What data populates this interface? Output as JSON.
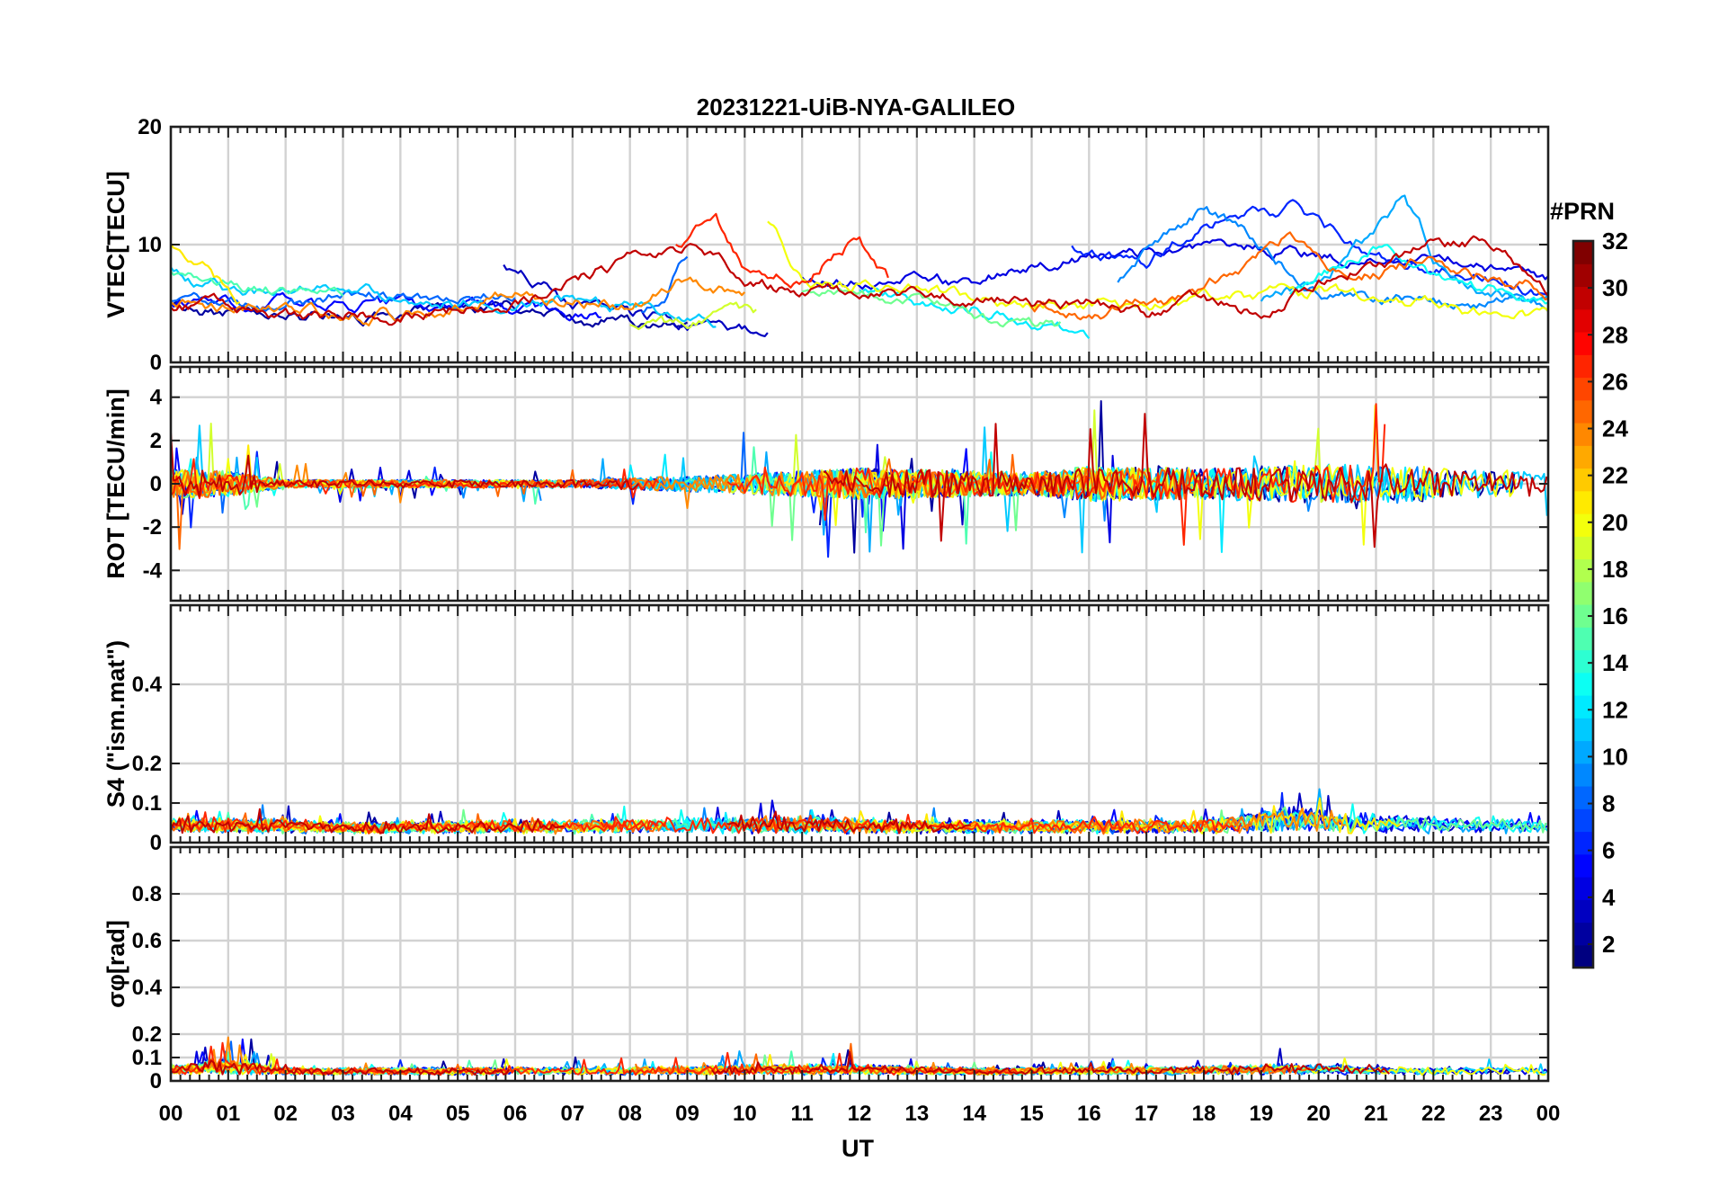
{
  "chart_data": {
    "type": "line",
    "title": "20231221-UiB-NYA-GALILEO",
    "xlabel": "UT",
    "x_ticks": [
      "00",
      "01",
      "02",
      "03",
      "04",
      "05",
      "06",
      "07",
      "08",
      "09",
      "10",
      "11",
      "12",
      "13",
      "14",
      "15",
      "16",
      "17",
      "18",
      "19",
      "20",
      "21",
      "22",
      "23",
      "00"
    ],
    "xlim": [
      0,
      24
    ],
    "grid": true,
    "colorbar": {
      "label": "#PRN",
      "range": [
        1,
        32
      ],
      "ticks": [
        "2",
        "4",
        "6",
        "8",
        "10",
        "12",
        "14",
        "16",
        "18",
        "20",
        "22",
        "24",
        "26",
        "28",
        "30",
        "32"
      ],
      "colormap": "jet"
    },
    "panels": [
      {
        "id": "vtec",
        "ylabel": "VTEC[TECU]",
        "ylim": [
          0,
          20
        ],
        "y_ticks": [
          "0",
          "10",
          "20"
        ],
        "baseline": 5,
        "noise": 0.7,
        "spike": 0.0,
        "series": [
          {
            "prn": 2,
            "start": 0,
            "end": 9,
            "level": [
              [
                0,
                4.8
              ],
              [
                2,
                3.5
              ],
              [
                4,
                4.0
              ],
              [
                6,
                5.0
              ],
              [
                8,
                3.2
              ],
              [
                9,
                3.5
              ]
            ]
          },
          {
            "prn": 3,
            "start": 5.8,
            "end": 10.4,
            "level": [
              [
                5.8,
                8
              ],
              [
                7,
                5
              ],
              [
                8,
                4
              ],
              [
                9,
                3.5
              ],
              [
                10,
                2.5
              ]
            ]
          },
          {
            "prn": 4,
            "start": 11,
            "end": 24,
            "level": [
              [
                11,
                7
              ],
              [
                14,
                7
              ],
              [
                16,
                9
              ],
              [
                18,
                10
              ],
              [
                20,
                9
              ],
              [
                22,
                9
              ],
              [
                24,
                7
              ]
            ]
          },
          {
            "prn": 5,
            "start": 0,
            "end": 7.5,
            "level": [
              [
                0,
                5
              ],
              [
                3,
                5
              ],
              [
                5,
                4.5
              ],
              [
                7,
                4
              ]
            ]
          },
          {
            "prn": 6,
            "start": 15.7,
            "end": 24,
            "level": [
              [
                15.7,
                10
              ],
              [
                17,
                8
              ],
              [
                18,
                12
              ],
              [
                19.5,
                13
              ],
              [
                21,
                9
              ],
              [
                22,
                8
              ],
              [
                24,
                6
              ]
            ]
          },
          {
            "prn": 8,
            "start": 0,
            "end": 6,
            "level": [
              [
                0,
                5
              ],
              [
                2,
                4.5
              ],
              [
                3,
                6
              ],
              [
                5,
                5
              ],
              [
                6,
                5.5
              ]
            ]
          },
          {
            "prn": 8,
            "start": 8.2,
            "end": 9.0,
            "level": [
              [
                8.2,
                4
              ],
              [
                8.6,
                6
              ],
              [
                9,
                9.5
              ]
            ]
          },
          {
            "prn": 9,
            "start": 16.5,
            "end": 24,
            "level": [
              [
                16.5,
                7
              ],
              [
                18,
                13
              ],
              [
                19,
                10
              ],
              [
                20,
                6
              ],
              [
                22,
                5
              ],
              [
                24,
                5
              ]
            ]
          },
          {
            "prn": 10,
            "start": 19,
            "end": 24,
            "level": [
              [
                19,
                5
              ],
              [
                20,
                7
              ],
              [
                21,
                11
              ],
              [
                21.5,
                14
              ],
              [
                22,
                9
              ],
              [
                23,
                6
              ],
              [
                24,
                5.5
              ]
            ]
          },
          {
            "prn": 11,
            "start": 0,
            "end": 9.5,
            "level": [
              [
                0,
                8
              ],
              [
                1,
                6
              ],
              [
                3,
                6
              ],
              [
                5,
                5
              ],
              [
                7,
                5.5
              ],
              [
                8,
                4.5
              ],
              [
                9.5,
                3
              ]
            ]
          },
          {
            "prn": 12,
            "start": 12,
            "end": 16,
            "level": [
              [
                12,
                6
              ],
              [
                13,
                5
              ],
              [
                14,
                5
              ],
              [
                15,
                3
              ],
              [
                16,
                2.5
              ]
            ]
          },
          {
            "prn": 13,
            "start": 19.5,
            "end": 24,
            "level": [
              [
                19.5,
                6
              ],
              [
                21,
                10
              ],
              [
                22,
                7
              ],
              [
                24,
                5
              ]
            ]
          },
          {
            "prn": 15,
            "start": 0,
            "end": 3,
            "level": [
              [
                0,
                8
              ],
              [
                1,
                7
              ],
              [
                2,
                6
              ],
              [
                3,
                6
              ]
            ]
          },
          {
            "prn": 16,
            "start": 11,
            "end": 15.5,
            "level": [
              [
                11,
                6
              ],
              [
                13,
                5
              ],
              [
                15,
                3
              ]
            ]
          },
          {
            "prn": 19,
            "start": 8,
            "end": 10.2,
            "level": [
              [
                8,
                3
              ],
              [
                9,
                3
              ],
              [
                10,
                4
              ]
            ]
          },
          {
            "prn": 20,
            "start": 10.4,
            "end": 24,
            "level": [
              [
                10.4,
                12
              ],
              [
                11,
                7
              ],
              [
                13,
                6
              ],
              [
                15,
                5
              ],
              [
                18,
                5
              ],
              [
                20,
                6
              ],
              [
                22,
                5
              ],
              [
                23,
                4
              ],
              [
                24,
                4
              ]
            ]
          },
          {
            "prn": 21,
            "start": 0,
            "end": 1.2,
            "level": [
              [
                0,
                10
              ],
              [
                0.6,
                8
              ],
              [
                1.2,
                5
              ]
            ]
          },
          {
            "prn": 24,
            "start": 0,
            "end": 10,
            "level": [
              [
                0,
                5
              ],
              [
                2,
                4
              ],
              [
                4,
                4
              ],
              [
                5,
                5
              ],
              [
                6,
                6
              ],
              [
                7,
                5
              ],
              [
                8,
                5
              ],
              [
                9,
                7
              ],
              [
                10,
                6
              ]
            ]
          },
          {
            "prn": 25,
            "start": 15,
            "end": 24,
            "level": [
              [
                15,
                5
              ],
              [
                16,
                4
              ],
              [
                18,
                6
              ],
              [
                19.5,
                11
              ],
              [
                20.5,
                7
              ],
              [
                22,
                9
              ],
              [
                24,
                6
              ]
            ]
          },
          {
            "prn": 27,
            "start": 8.8,
            "end": 12.5,
            "level": [
              [
                8.8,
                10
              ],
              [
                9.5,
                12
              ],
              [
                10,
                8
              ],
              [
                11,
                7
              ],
              [
                12,
                11
              ],
              [
                12.5,
                7
              ]
            ]
          },
          {
            "prn": 30,
            "start": 0,
            "end": 24,
            "level": [
              [
                0,
                5
              ],
              [
                2,
                4
              ],
              [
                4,
                4
              ],
              [
                6,
                5
              ],
              [
                7.5,
                8
              ],
              [
                9,
                10
              ],
              [
                10,
                7
              ],
              [
                11,
                6
              ],
              [
                13,
                6
              ],
              [
                15,
                5
              ],
              [
                16,
                5
              ],
              [
                17,
                4
              ],
              [
                18,
                5
              ],
              [
                19,
                4
              ],
              [
                20,
                7
              ],
              [
                22,
                10
              ],
              [
                23,
                10
              ],
              [
                24,
                6
              ]
            ]
          }
        ]
      },
      {
        "id": "rot",
        "ylabel": "ROT [TECU/min]",
        "ylim": [
          -5.4,
          5.4
        ],
        "y_ticks": [
          "-4",
          "-2",
          "0",
          "2",
          "4"
        ],
        "baseline": 0,
        "noise": 0.45,
        "spike": 2.2,
        "envelope": [
          [
            0,
            1.5
          ],
          [
            1,
            1.3
          ],
          [
            2,
            0.4
          ],
          [
            7,
            0.4
          ],
          [
            9,
            0.8
          ],
          [
            12,
            1.6
          ],
          [
            15,
            1.2
          ],
          [
            16,
            1.8
          ],
          [
            18,
            1.6
          ],
          [
            20,
            2.0
          ],
          [
            22,
            1.8
          ],
          [
            24,
            1.2
          ]
        ],
        "series_prns": [
          2,
          3,
          4,
          5,
          6,
          8,
          9,
          10,
          11,
          12,
          13,
          15,
          16,
          19,
          20,
          21,
          24,
          25,
          27,
          30
        ]
      },
      {
        "id": "s4",
        "ylabel": "S4 (\"ism.mat\")",
        "ylim": [
          0,
          0.6
        ],
        "y_ticks": [
          "0",
          "0.1",
          "0.2",
          "0.4"
        ],
        "baseline": 0.035,
        "noise": 0.02,
        "spike": 0.05,
        "envelope": [
          [
            0,
            1.2
          ],
          [
            2,
            1
          ],
          [
            3,
            0.6
          ],
          [
            9,
            1.2
          ],
          [
            11,
            1.4
          ],
          [
            13,
            0.8
          ],
          [
            18,
            1
          ],
          [
            19.5,
            2.8
          ],
          [
            20,
            2.2
          ],
          [
            21,
            1.6
          ],
          [
            24,
            0.8
          ]
        ],
        "series_prns": [
          2,
          3,
          4,
          5,
          6,
          8,
          9,
          10,
          11,
          12,
          13,
          15,
          16,
          19,
          20,
          21,
          24,
          25,
          27,
          30
        ]
      },
      {
        "id": "sigma",
        "ylabel": "σφ[rad]",
        "ylim": [
          0,
          1.0
        ],
        "y_ticks": [
          "0",
          "0.1",
          "0.2",
          "0.4",
          "0.6",
          "0.8"
        ],
        "baseline": 0.04,
        "noise": 0.015,
        "spike": 0.06,
        "envelope": [
          [
            0,
            1.2
          ],
          [
            0.7,
            3
          ],
          [
            1.3,
            3
          ],
          [
            2,
            0.6
          ],
          [
            8,
            1
          ],
          [
            10,
            1.6
          ],
          [
            12,
            1.8
          ],
          [
            14,
            0.6
          ],
          [
            18,
            1.2
          ],
          [
            19.5,
            2
          ],
          [
            21,
            1
          ],
          [
            24,
            0.8
          ]
        ],
        "series_prns": [
          2,
          3,
          4,
          5,
          6,
          8,
          9,
          10,
          11,
          12,
          13,
          15,
          16,
          19,
          20,
          21,
          24,
          25,
          27,
          30
        ]
      }
    ]
  }
}
